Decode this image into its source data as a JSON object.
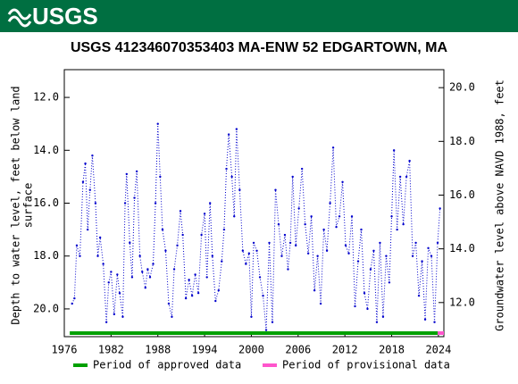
{
  "header": {
    "logo": "USGS"
  },
  "chart_data": {
    "type": "line",
    "title": "USGS 412346070353403 MA-ENW   52 EDGARTOWN, MA",
    "y_label": [
      "Depth to water level, feet below land",
      "surface"
    ],
    "y2_label": "Groundwater level above NAVD 1988, feet",
    "y_inverted": true,
    "xlim": [
      1976,
      2024.7
    ],
    "xticks": [
      1976,
      1982,
      1988,
      1994,
      2000,
      2006,
      2012,
      2018,
      2024
    ],
    "ylim": [
      10.95,
      21.05
    ],
    "yticks": [
      {
        "value": 12,
        "label": "12.0"
      },
      {
        "value": 14,
        "label": "14.0"
      },
      {
        "value": 16,
        "label": "16.0"
      },
      {
        "value": 18,
        "label": "18.0"
      },
      {
        "value": 20,
        "label": "20.0"
      }
    ],
    "y2lim": [
      10.73,
      20.67
    ],
    "y2ticks": [
      {
        "value": 12,
        "label": "12.0"
      },
      {
        "value": 14,
        "label": "14.0"
      },
      {
        "value": 16,
        "label": "16.0"
      },
      {
        "value": 18,
        "label": "18.0"
      },
      {
        "value": 20,
        "label": "20.0"
      }
    ],
    "series": [
      {
        "color": "#0000cc",
        "x": [
          1977.0,
          1977.3,
          1977.6,
          1978.0,
          1978.4,
          1978.7,
          1979.0,
          1979.3,
          1979.6,
          1980.0,
          1980.3,
          1980.6,
          1981.0,
          1981.4,
          1981.7,
          1982.0,
          1982.4,
          1982.8,
          1983.1,
          1983.5,
          1983.8,
          1984.0,
          1984.4,
          1984.7,
          1985.0,
          1985.3,
          1985.7,
          1986.0,
          1986.4,
          1986.7,
          1987.0,
          1987.4,
          1987.7,
          1988.0,
          1988.3,
          1988.6,
          1989.0,
          1989.4,
          1989.8,
          1990.1,
          1990.5,
          1990.9,
          1991.2,
          1991.6,
          1992.0,
          1992.4,
          1992.8,
          1993.2,
          1993.6,
          1994.0,
          1994.3,
          1994.7,
          1995.0,
          1995.4,
          1995.8,
          1996.2,
          1996.5,
          1996.8,
          1997.1,
          1997.5,
          1997.8,
          1998.1,
          1998.5,
          1998.9,
          1999.3,
          1999.7,
          2000.0,
          2000.3,
          2000.7,
          2001.1,
          2001.5,
          2001.9,
          2002.3,
          2002.7,
          2003.1,
          2003.5,
          2003.9,
          2004.3,
          2004.7,
          2005.0,
          2005.3,
          2005.7,
          2006.1,
          2006.5,
          2006.9,
          2007.3,
          2007.7,
          2008.1,
          2008.5,
          2008.9,
          2009.3,
          2009.7,
          2010.1,
          2010.5,
          2010.9,
          2011.3,
          2011.7,
          2012.1,
          2012.5,
          2012.9,
          2013.3,
          2013.7,
          2014.1,
          2014.5,
          2014.9,
          2015.3,
          2015.7,
          2016.1,
          2016.5,
          2016.9,
          2017.3,
          2017.7,
          2018.0,
          2018.3,
          2018.7,
          2019.1,
          2019.5,
          2019.9,
          2020.3,
          2020.7,
          2021.1,
          2021.5,
          2021.9,
          2022.3,
          2022.7,
          2023.1,
          2023.5,
          2023.9,
          2024.2
        ],
        "values": [
          19.8,
          19.6,
          17.6,
          18.0,
          15.2,
          14.5,
          17.0,
          15.5,
          14.2,
          16.0,
          18.0,
          17.3,
          18.3,
          20.5,
          19.0,
          18.6,
          20.2,
          18.7,
          19.4,
          20.3,
          16.0,
          14.9,
          17.5,
          18.8,
          15.8,
          14.8,
          18.0,
          18.6,
          19.2,
          18.5,
          18.8,
          18.3,
          16.0,
          13.0,
          15.0,
          17.0,
          17.8,
          19.8,
          20.3,
          18.5,
          17.6,
          16.3,
          17.2,
          19.6,
          18.9,
          19.5,
          18.7,
          19.4,
          17.2,
          16.4,
          18.8,
          16.0,
          18.0,
          19.7,
          19.3,
          18.2,
          17.0,
          14.7,
          13.4,
          15.0,
          16.5,
          13.2,
          15.5,
          17.8,
          18.3,
          17.9,
          20.3,
          17.5,
          17.8,
          18.8,
          19.5,
          20.8,
          17.5,
          20.5,
          15.5,
          16.8,
          18.0,
          17.2,
          18.5,
          17.5,
          15.0,
          17.6,
          16.2,
          14.7,
          16.8,
          17.9,
          16.5,
          19.3,
          18.0,
          19.8,
          17.0,
          17.8,
          16.0,
          13.9,
          16.9,
          16.5,
          15.2,
          17.6,
          17.9,
          16.5,
          19.9,
          18.2,
          17.0,
          19.4,
          20.0,
          18.5,
          17.8,
          20.5,
          17.5,
          20.3,
          18.0,
          19.0,
          16.5,
          14.0,
          17.0,
          15.0,
          16.8,
          15.0,
          14.4,
          18.0,
          17.5,
          19.5,
          18.2,
          20.4,
          17.7,
          18.0,
          20.5,
          17.5,
          16.2
        ]
      }
    ],
    "periods": [
      {
        "name": "Period of approved data",
        "color": "#00a000",
        "start": 1976.7,
        "end": 2023.9
      },
      {
        "name": "Period of provisional data",
        "color": "#ff55cc",
        "start": 2023.9,
        "end": 2024.7
      }
    ]
  }
}
